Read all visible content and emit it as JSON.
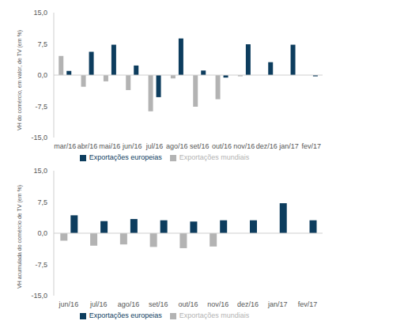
{
  "chart_data": [
    {
      "type": "bar",
      "y_label": "VH do comércio, em valor, de TV (em %)",
      "categories": [
        "mar/16",
        "abr/16",
        "mai/16",
        "jun/16",
        "jul/16",
        "ago/16",
        "set/16",
        "out/16",
        "nov/16",
        "dez/16",
        "jan/17",
        "fev/17"
      ],
      "series": [
        {
          "name": "Exportações mundiais",
          "color": "#b3b3b3",
          "values": [
            4.6,
            -2.8,
            -1.5,
            -3.6,
            -8.7,
            -0.8,
            -7.6,
            -5.8,
            -0.3,
            null,
            null,
            null
          ]
        },
        {
          "name": "Exportações europeias",
          "color": "#0d3d5e",
          "values": [
            1.0,
            5.6,
            7.3,
            2.3,
            -5.3,
            8.8,
            1.1,
            -0.6,
            7.4,
            3.1,
            7.3,
            -0.3
          ]
        }
      ],
      "ylim": [
        -15,
        15
      ],
      "yticks": [
        {
          "value": -15,
          "label": "-15,0"
        },
        {
          "value": -7.5,
          "label": "-7,5"
        },
        {
          "value": 0,
          "label": "0,0"
        },
        {
          "value": 7.5,
          "label": "7,5"
        },
        {
          "value": 15,
          "label": "15,0"
        }
      ],
      "grid": false,
      "legend": "bottom"
    },
    {
      "type": "bar",
      "y_label": "VH acumulada do comércio de TV (em %)",
      "categories": [
        "jun/16",
        "jul/16",
        "ago/16",
        "set/16",
        "out/16",
        "nov/16",
        "dez/16",
        "jan/17",
        "fev/17"
      ],
      "series": [
        {
          "name": "Exportações mundiais",
          "color": "#b3b3b3",
          "values": [
            -1.8,
            -3.0,
            -2.7,
            -3.3,
            -3.6,
            -3.2,
            null,
            null,
            null
          ]
        },
        {
          "name": "Exportações europeias",
          "color": "#0d3d5e",
          "values": [
            4.3,
            2.9,
            3.4,
            3.1,
            2.8,
            3.1,
            3.1,
            7.2,
            3.1
          ]
        }
      ],
      "ylim": [
        -15,
        15
      ],
      "yticks": [
        {
          "value": -15,
          "label": "-15,0"
        },
        {
          "value": -7.5,
          "label": "-7,5"
        },
        {
          "value": 0,
          "label": "0,0"
        },
        {
          "value": 7.5,
          "label": "7,5"
        },
        {
          "value": 15,
          "label": "15,0"
        }
      ],
      "grid": false,
      "legend": "bottom"
    }
  ]
}
